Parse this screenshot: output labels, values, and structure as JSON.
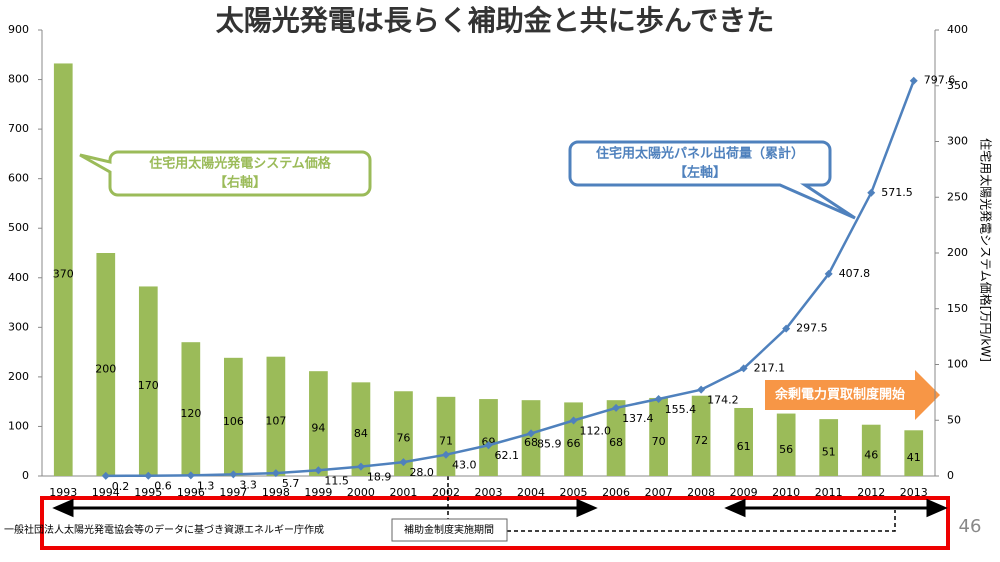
{
  "chart_data": {
    "type": "bar-line",
    "title": "太陽光発電は長らく補助金と共に歩んできた",
    "categories": [
      "1993",
      "1994",
      "1995",
      "1996",
      "1997",
      "1998",
      "1999",
      "2000",
      "2001",
      "2002",
      "2003",
      "2004",
      "2005",
      "2006",
      "2007",
      "2008",
      "2009",
      "2010",
      "2011",
      "2012",
      "2013"
    ],
    "series": [
      {
        "type": "bar",
        "axis": "y2",
        "color": "#9bbb59",
        "values": [
          370,
          200,
          170,
          120,
          106,
          107,
          94,
          84,
          76,
          71,
          69,
          68,
          66,
          68,
          70,
          72,
          61,
          56,
          51,
          46,
          41
        ]
      },
      {
        "type": "line",
        "axis": "y",
        "color": "#4f81bd",
        "values": [
          null,
          0.2,
          0.6,
          1.3,
          3.3,
          5.7,
          11.5,
          18.9,
          28.0,
          43.0,
          62.1,
          85.9,
          112.0,
          137.4,
          155.4,
          174.2,
          217.1,
          297.5,
          407.8,
          571.5,
          797.6
        ],
        "value_labels": [
          null,
          "0.2",
          "0.6",
          "1.3",
          "3.3",
          "5.7",
          "11.5",
          "18.9",
          "28.0",
          "43.0",
          "62.1",
          "85.9",
          "112.0",
          "137.4",
          "155.4",
          "174.2",
          "217.1",
          "297.5",
          "407.8",
          "571.5",
          "797.6"
        ]
      }
    ],
    "ylim": [
      0,
      900
    ],
    "yticks": [
      0,
      100,
      200,
      300,
      400,
      500,
      600,
      700,
      800,
      900
    ],
    "y2lim": [
      0,
      400
    ],
    "y2ticks": [
      0,
      50,
      100,
      150,
      200,
      250,
      300,
      350,
      400
    ],
    "y2label": "住宅用太陽光発電システム価格[万円/kW]",
    "annotations": {
      "price_callout": [
        "住宅用太陽光発電システム価格",
        "【右軸】"
      ],
      "shipment_callout": [
        "住宅用太陽光パネル出荷量（累計）",
        "【左軸】"
      ],
      "fit_arrow": "余剰電力買取制度開始",
      "subsidy_period": "補助金制度実施期間",
      "source": "一般社団法人太陽光発電協会等のデータに基づき資源エネルギー庁作成",
      "page": "46"
    }
  }
}
